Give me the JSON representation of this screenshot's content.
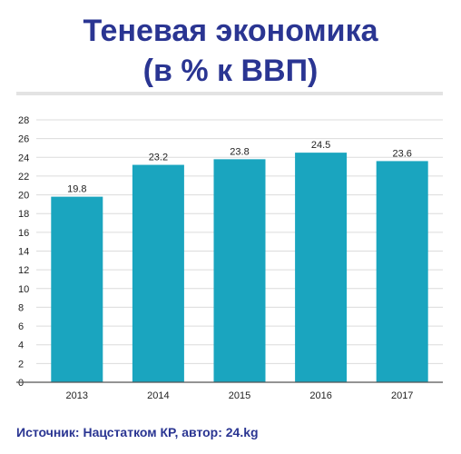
{
  "header": {
    "title_line1": "Теневая экономика",
    "title_line2": "(в % к ВВП)"
  },
  "footer": {
    "source": "Источник: Нацстатком КР, автор: 24.kg"
  },
  "colors": {
    "title": "#2a3592",
    "bar": "#1aa5bf",
    "source": "#2a3592",
    "grid": "#dcdcdc",
    "axis": "#555555",
    "text": "#222222"
  },
  "chart_data": {
    "type": "bar",
    "categories": [
      "2013",
      "2014",
      "2015",
      "2016",
      "2017"
    ],
    "values": [
      19.8,
      23.2,
      23.8,
      24.5,
      23.6
    ],
    "data_labels": [
      "19.8",
      "23.2",
      "23.8",
      "24.5",
      "23.6"
    ],
    "title": "",
    "xlabel": "",
    "ylabel": "",
    "ylim": [
      0,
      28
    ],
    "yticks": [
      0,
      2,
      4,
      6,
      8,
      10,
      12,
      14,
      16,
      18,
      20,
      22,
      24,
      26,
      28
    ],
    "grid": true,
    "legend": "none"
  }
}
